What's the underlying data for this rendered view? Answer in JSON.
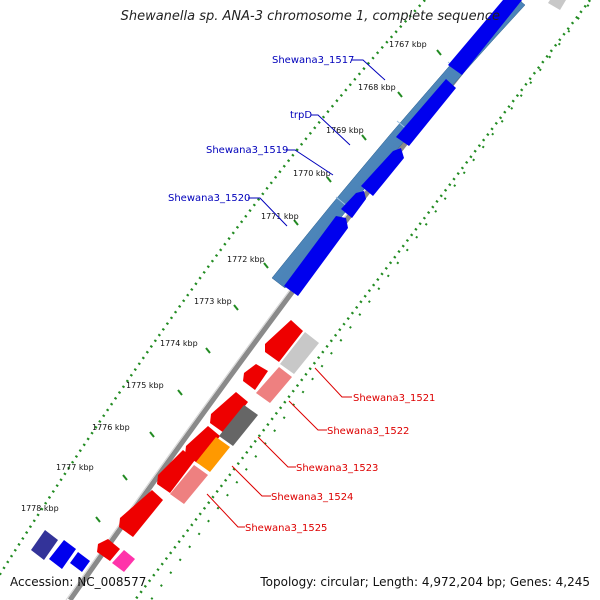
{
  "header": {
    "title": "Shewanella sp. ANA-3 chromosome 1, complete sequence"
  },
  "footer": {
    "accession": "Accession: NC_008577",
    "topology": "Topology: circular; Length: 4,972,204 bp; Genes: 4,245"
  },
  "colors": {
    "forward_cds": "#0000ee",
    "forward_blast": "#3f7fb5",
    "reverse_cds": "#ee0000",
    "reverse_pink": "#ee8080",
    "grey": "#666666",
    "light_grey": "#c8c8c8",
    "orange": "#ff9900",
    "magenta": "#ff33aa",
    "navy": "#333399",
    "forward_label": "#0000bb",
    "reverse_label": "#dd0000",
    "tick": "#228b22"
  },
  "scale_ticks": [
    "1767 kbp",
    "1768 kbp",
    "1769 kbp",
    "1770 kbp",
    "1771 kbp",
    "1772 kbp",
    "1773 kbp",
    "1774 kbp",
    "1775 kbp",
    "1776 kbp",
    "1777 kbp",
    "1778 kbp"
  ],
  "gene_labels_forward": [
    "Shewana3_1517",
    "trpD",
    "Shewana3_1519",
    "Shewana3_1520"
  ],
  "gene_labels_reverse": [
    "Shewana3_1521",
    "Shewana3_1522",
    "Shewana3_1523",
    "Shewana3_1524",
    "Shewana3_1525"
  ]
}
